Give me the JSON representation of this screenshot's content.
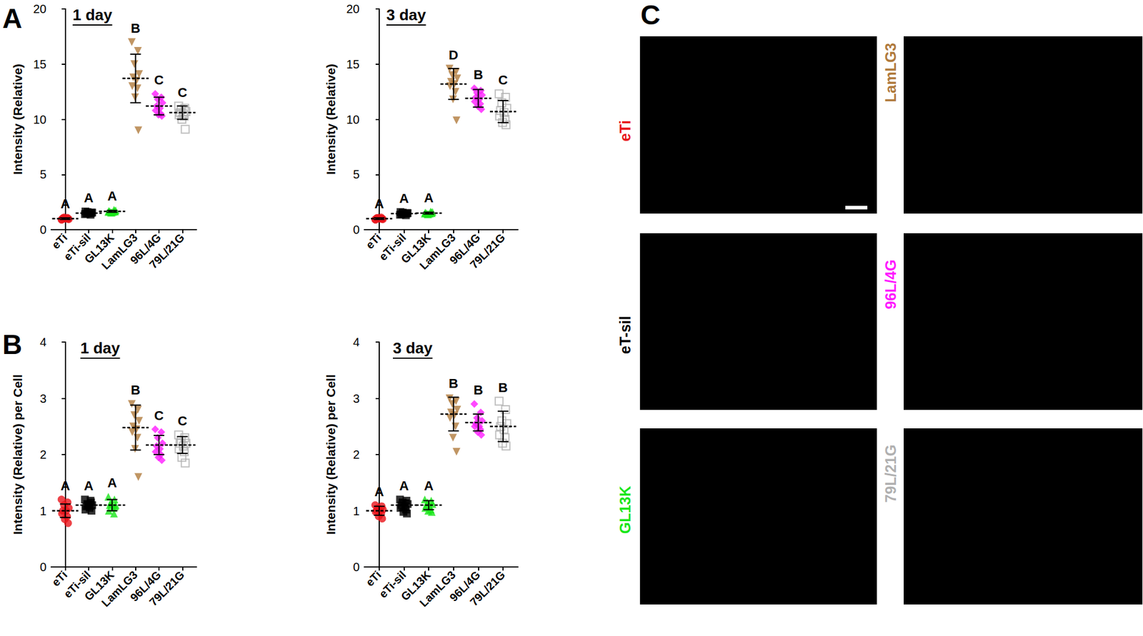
{
  "chart_data": [
    {
      "type": "scatter",
      "panel_label": "A",
      "title": "1 day",
      "y_label": "Intensity (Relative)",
      "categories": [
        "eTi",
        "eTi-sil",
        "GL13K",
        "LamLG3",
        "96L/4G",
        "79L/21G"
      ],
      "ylim": [
        0,
        20
      ],
      "yticks": [
        0,
        5,
        10,
        15,
        20
      ],
      "grid": false,
      "groups": [
        {
          "color": "#e8141a",
          "marker": "circle",
          "values": [
            0.9,
            1.0,
            1.1,
            0.95,
            1.05,
            1.0,
            0.92,
            1.08,
            1.0,
            0.98
          ],
          "mean": 1.0,
          "sd": 0.07,
          "letter": "A"
        },
        {
          "color": "#000000",
          "marker": "square",
          "values": [
            1.4,
            1.5,
            1.6,
            1.55,
            1.45,
            1.5,
            1.65,
            1.35,
            1.5,
            1.55
          ],
          "mean": 1.5,
          "sd": 0.1,
          "letter": "A"
        },
        {
          "color": "#19e619",
          "marker": "triangle",
          "values": [
            1.6,
            1.7,
            1.55,
            1.75,
            1.65,
            1.6,
            1.7,
            1.8,
            1.55,
            1.65
          ],
          "mean": 1.66,
          "sd": 0.08,
          "letter": "A"
        },
        {
          "color": "#b07a3c",
          "marker": "triangle-down",
          "values": [
            17.0,
            16.2,
            15.0,
            14.1,
            13.8,
            13.5,
            13.0,
            12.8,
            12.0,
            9.0
          ],
          "mean": 13.7,
          "sd": 2.2,
          "letter": "B"
        },
        {
          "color": "#ff1aff",
          "marker": "diamond",
          "values": [
            12.3,
            12.0,
            11.8,
            11.5,
            11.2,
            11.0,
            10.8,
            10.5,
            10.4,
            10.3
          ],
          "mean": 11.2,
          "sd": 0.8,
          "letter": "C"
        },
        {
          "color": "#b0b0b0",
          "marker": "open-square",
          "values": [
            11.2,
            11.0,
            10.9,
            10.7,
            10.6,
            10.5,
            10.4,
            10.3,
            10.0,
            9.1
          ],
          "mean": 10.6,
          "sd": 0.6,
          "letter": "C"
        }
      ]
    },
    {
      "type": "scatter",
      "title": "3 day",
      "y_label": "Intensity (Relative)",
      "categories": [
        "eTi",
        "eTi-sil",
        "GL13K",
        "LamLG3",
        "96L/4G",
        "79L/21G"
      ],
      "ylim": [
        0,
        20
      ],
      "yticks": [
        0,
        5,
        10,
        15,
        20
      ],
      "grid": false,
      "groups": [
        {
          "color": "#e8141a",
          "marker": "circle",
          "values": [
            0.92,
            1.0,
            1.08,
            0.95,
            1.05,
            1.0,
            0.9,
            1.1,
            1.0,
            0.97
          ],
          "mean": 1.0,
          "sd": 0.07,
          "letter": "A"
        },
        {
          "color": "#000000",
          "marker": "square",
          "values": [
            1.35,
            1.45,
            1.55,
            1.5,
            1.4,
            1.45,
            1.6,
            1.3,
            1.45,
            1.5
          ],
          "mean": 1.45,
          "sd": 0.09,
          "letter": "A"
        },
        {
          "color": "#19e619",
          "marker": "triangle",
          "values": [
            1.45,
            1.55,
            1.4,
            1.6,
            1.5,
            1.45,
            1.55,
            1.65,
            1.4,
            1.5
          ],
          "mean": 1.5,
          "sd": 0.08,
          "letter": "A"
        },
        {
          "color": "#b07a3c",
          "marker": "triangle-down",
          "values": [
            14.6,
            14.3,
            14.0,
            13.7,
            13.4,
            13.2,
            13.0,
            12.5,
            11.8,
            9.9
          ],
          "mean": 13.2,
          "sd": 1.4,
          "letter": "D"
        },
        {
          "color": "#ff1aff",
          "marker": "diamond",
          "values": [
            12.8,
            12.6,
            12.4,
            12.2,
            12.0,
            11.8,
            11.6,
            11.4,
            11.2,
            10.9
          ],
          "mean": 11.9,
          "sd": 0.8,
          "letter": "B"
        },
        {
          "color": "#b0b0b0",
          "marker": "open-square",
          "values": [
            12.3,
            12.0,
            11.5,
            11.0,
            10.8,
            10.6,
            10.3,
            10.0,
            9.7,
            9.5
          ],
          "mean": 10.7,
          "sd": 1.0,
          "letter": "C"
        }
      ]
    },
    {
      "type": "scatter",
      "panel_label": "B",
      "title": "1 day",
      "y_label": "Intensity (Relative) per Cell",
      "categories": [
        "eTi",
        "eTi-sil",
        "GL13K",
        "LamLG3",
        "96L/4G",
        "79L/21G"
      ],
      "ylim": [
        0,
        4
      ],
      "yticks": [
        0,
        1,
        2,
        3,
        4
      ],
      "grid": false,
      "groups": [
        {
          "color": "#e8141a",
          "marker": "circle",
          "values": [
            1.2,
            1.15,
            1.1,
            1.05,
            1.0,
            1.0,
            0.95,
            0.9,
            0.85,
            0.78
          ],
          "mean": 1.0,
          "sd": 0.12,
          "letter": "A"
        },
        {
          "color": "#000000",
          "marker": "square",
          "values": [
            1.2,
            1.15,
            1.12,
            1.1,
            1.08,
            1.05,
            1.02,
            1.18,
            1.1,
            1.0
          ],
          "mean": 1.1,
          "sd": 0.07,
          "letter": "A"
        },
        {
          "color": "#19e619",
          "marker": "triangle",
          "values": [
            1.25,
            1.2,
            1.15,
            1.1,
            1.1,
            1.05,
            1.0,
            0.95,
            1.12,
            1.08
          ],
          "mean": 1.1,
          "sd": 0.1,
          "letter": "A"
        },
        {
          "color": "#b07a3c",
          "marker": "triangle-down",
          "values": [
            2.9,
            2.8,
            2.7,
            2.6,
            2.5,
            2.45,
            2.4,
            2.3,
            2.1,
            1.6
          ],
          "mean": 2.48,
          "sd": 0.4,
          "letter": "B"
        },
        {
          "color": "#ff1aff",
          "marker": "diamond",
          "values": [
            2.45,
            2.4,
            2.3,
            2.2,
            2.15,
            2.1,
            2.05,
            2.0,
            1.95,
            1.9
          ],
          "mean": 2.17,
          "sd": 0.17,
          "letter": "C"
        },
        {
          "color": "#b0b0b0",
          "marker": "open-square",
          "values": [
            2.35,
            2.3,
            2.25,
            2.2,
            2.2,
            2.15,
            2.1,
            2.05,
            1.95,
            1.85
          ],
          "mean": 2.17,
          "sd": 0.15,
          "letter": "C"
        }
      ]
    },
    {
      "type": "scatter",
      "title": "3 day",
      "y_label": "Intensity (Relative) per Cell",
      "categories": [
        "eTi",
        "eTi-sil",
        "GL13K",
        "LamLG3",
        "96L/4G",
        "79L/21G"
      ],
      "ylim": [
        0,
        4
      ],
      "yticks": [
        0,
        1,
        2,
        3,
        4
      ],
      "grid": false,
      "groups": [
        {
          "color": "#e8141a",
          "marker": "circle",
          "values": [
            1.1,
            1.08,
            1.05,
            1.02,
            1.0,
            1.0,
            0.98,
            0.95,
            0.9,
            0.86
          ],
          "mean": 1.0,
          "sd": 0.08,
          "letter": "A"
        },
        {
          "color": "#000000",
          "marker": "square",
          "values": [
            1.2,
            1.18,
            1.15,
            1.12,
            1.1,
            1.08,
            1.05,
            1.02,
            0.98,
            0.95
          ],
          "mean": 1.1,
          "sd": 0.09,
          "letter": "A"
        },
        {
          "color": "#19e619",
          "marker": "triangle",
          "values": [
            1.2,
            1.18,
            1.15,
            1.12,
            1.1,
            1.08,
            1.05,
            1.02,
            1.0,
            0.98
          ],
          "mean": 1.1,
          "sd": 0.08,
          "letter": "A"
        },
        {
          "color": "#b07a3c",
          "marker": "triangle-down",
          "values": [
            3.0,
            2.95,
            2.9,
            2.8,
            2.75,
            2.7,
            2.65,
            2.5,
            2.3,
            2.05
          ],
          "mean": 2.72,
          "sd": 0.3,
          "letter": "B"
        },
        {
          "color": "#ff1aff",
          "marker": "diamond",
          "values": [
            2.9,
            2.75,
            2.65,
            2.6,
            2.55,
            2.5,
            2.5,
            2.45,
            2.4,
            2.35
          ],
          "mean": 2.57,
          "sd": 0.15,
          "letter": "B"
        },
        {
          "color": "#b0b0b0",
          "marker": "open-square",
          "values": [
            2.95,
            2.8,
            2.6,
            2.55,
            2.5,
            2.45,
            2.35,
            2.3,
            2.2,
            2.15
          ],
          "mean": 2.5,
          "sd": 0.27,
          "letter": "B"
        }
      ]
    }
  ],
  "panel_c": {
    "panel_label": "C",
    "images": [
      {
        "label": "eTi",
        "color": "#e8141a"
      },
      {
        "label": "eT-sil",
        "color": "#000000"
      },
      {
        "label": "GL13K",
        "color": "#19e619"
      },
      {
        "label": "LamLG3",
        "color": "#b07a3c"
      },
      {
        "label": "96L/4G",
        "color": "#ff1aff"
      },
      {
        "label": "79L/21G",
        "color": "#b0b0b0"
      }
    ]
  }
}
